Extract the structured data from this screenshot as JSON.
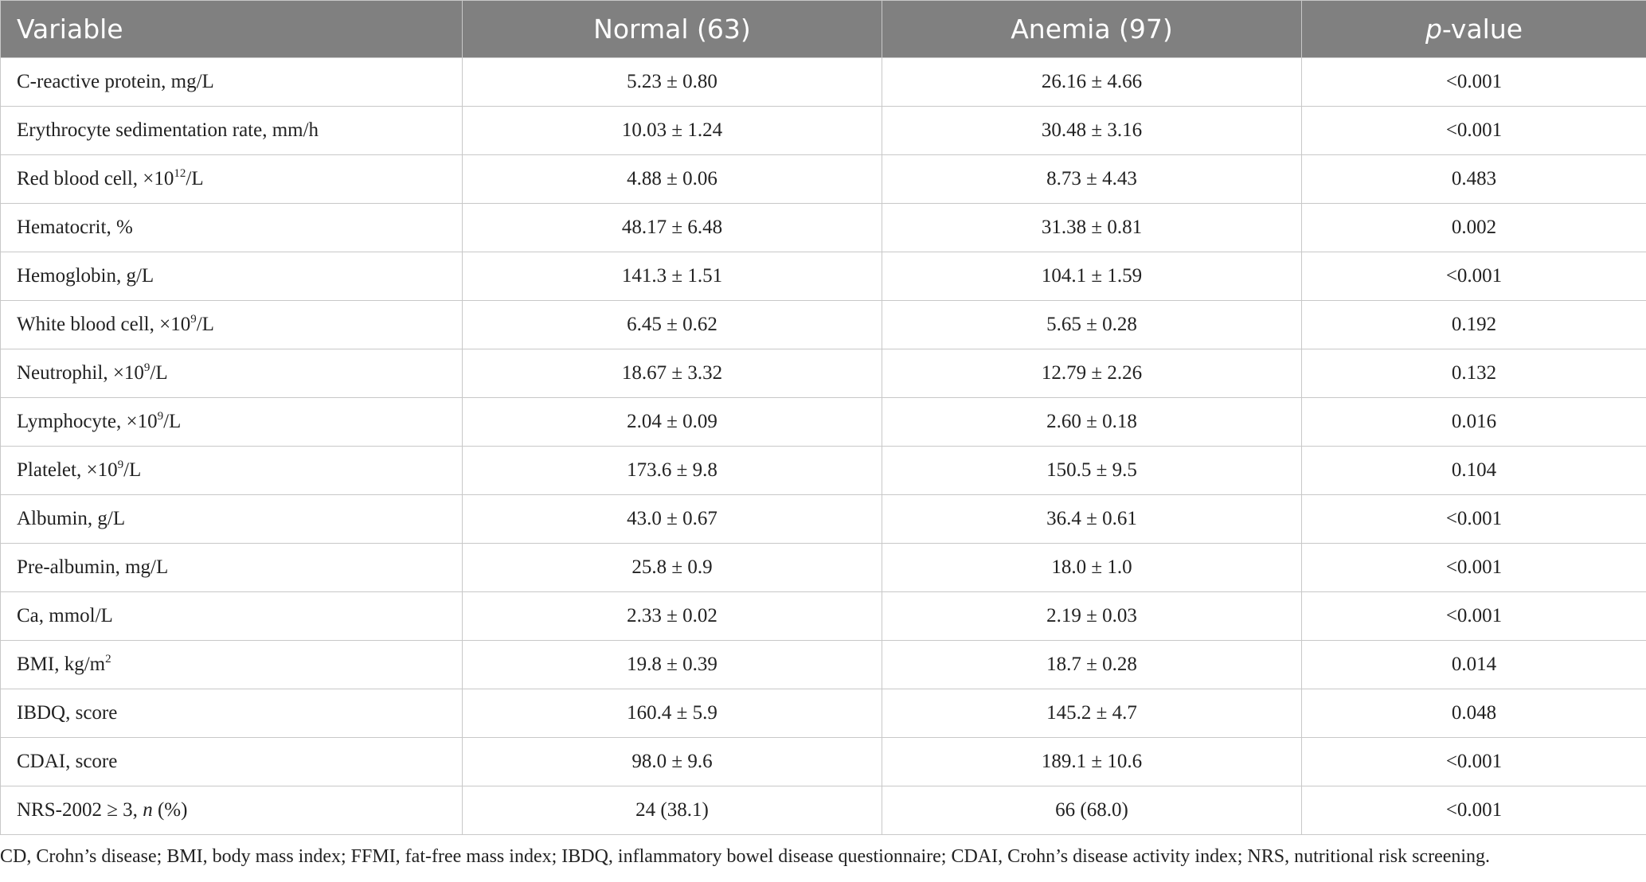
{
  "table": {
    "header": [
      [
        {
          "text": "Variable"
        }
      ],
      [
        {
          "text": "Normal (63)"
        }
      ],
      [
        {
          "text": "Anemia (97)"
        }
      ],
      [
        {
          "text": "p",
          "style": "italic"
        },
        {
          "text": "-value"
        }
      ]
    ],
    "rows": [
      [
        [
          {
            "text": "C-reactive protein, mg/L"
          }
        ],
        [
          {
            "text": "5.23 ± 0.80"
          }
        ],
        [
          {
            "text": "26.16 ± 4.66"
          }
        ],
        [
          {
            "text": "<0.001"
          }
        ]
      ],
      [
        [
          {
            "text": "Erythrocyte sedimentation rate, mm/h"
          }
        ],
        [
          {
            "text": "10.03 ± 1.24"
          }
        ],
        [
          {
            "text": "30.48 ± 3.16"
          }
        ],
        [
          {
            "text": "<0.001"
          }
        ]
      ],
      [
        [
          {
            "text": "Red blood cell, ×10"
          },
          {
            "text": "12",
            "style": "sup"
          },
          {
            "text": "/L"
          }
        ],
        [
          {
            "text": "4.88 ± 0.06"
          }
        ],
        [
          {
            "text": "8.73 ± 4.43"
          }
        ],
        [
          {
            "text": "0.483"
          }
        ]
      ],
      [
        [
          {
            "text": "Hematocrit, %"
          }
        ],
        [
          {
            "text": "48.17 ± 6.48"
          }
        ],
        [
          {
            "text": "31.38 ± 0.81"
          }
        ],
        [
          {
            "text": "0.002"
          }
        ]
      ],
      [
        [
          {
            "text": "Hemoglobin, g/L"
          }
        ],
        [
          {
            "text": "141.3 ± 1.51"
          }
        ],
        [
          {
            "text": "104.1 ± 1.59"
          }
        ],
        [
          {
            "text": "<0.001"
          }
        ]
      ],
      [
        [
          {
            "text": "White blood cell, ×10"
          },
          {
            "text": "9",
            "style": "sup"
          },
          {
            "text": "/L"
          }
        ],
        [
          {
            "text": "6.45 ± 0.62"
          }
        ],
        [
          {
            "text": "5.65 ± 0.28"
          }
        ],
        [
          {
            "text": "0.192"
          }
        ]
      ],
      [
        [
          {
            "text": "Neutrophil, ×10"
          },
          {
            "text": "9",
            "style": "sup"
          },
          {
            "text": "/L"
          }
        ],
        [
          {
            "text": "18.67 ± 3.32"
          }
        ],
        [
          {
            "text": "12.79 ± 2.26"
          }
        ],
        [
          {
            "text": "0.132"
          }
        ]
      ],
      [
        [
          {
            "text": "Lymphocyte, ×10"
          },
          {
            "text": "9",
            "style": "sup"
          },
          {
            "text": "/L"
          }
        ],
        [
          {
            "text": "2.04 ± 0.09"
          }
        ],
        [
          {
            "text": "2.60 ± 0.18"
          }
        ],
        [
          {
            "text": "0.016"
          }
        ]
      ],
      [
        [
          {
            "text": "Platelet, ×10"
          },
          {
            "text": "9",
            "style": "sup"
          },
          {
            "text": "/L"
          }
        ],
        [
          {
            "text": "173.6 ± 9.8"
          }
        ],
        [
          {
            "text": "150.5 ± 9.5"
          }
        ],
        [
          {
            "text": "0.104"
          }
        ]
      ],
      [
        [
          {
            "text": "Albumin, g/L"
          }
        ],
        [
          {
            "text": "43.0 ± 0.67"
          }
        ],
        [
          {
            "text": "36.4 ± 0.61"
          }
        ],
        [
          {
            "text": "<0.001"
          }
        ]
      ],
      [
        [
          {
            "text": "Pre-albumin, mg/L"
          }
        ],
        [
          {
            "text": "25.8 ± 0.9"
          }
        ],
        [
          {
            "text": "18.0 ± 1.0"
          }
        ],
        [
          {
            "text": "<0.001"
          }
        ]
      ],
      [
        [
          {
            "text": "Ca, mmol/L"
          }
        ],
        [
          {
            "text": "2.33 ± 0.02"
          }
        ],
        [
          {
            "text": "2.19 ± 0.03"
          }
        ],
        [
          {
            "text": "<0.001"
          }
        ]
      ],
      [
        [
          {
            "text": "BMI, kg/m"
          },
          {
            "text": "2",
            "style": "sup"
          }
        ],
        [
          {
            "text": "19.8 ± 0.39"
          }
        ],
        [
          {
            "text": "18.7 ± 0.28"
          }
        ],
        [
          {
            "text": "0.014"
          }
        ]
      ],
      [
        [
          {
            "text": "IBDQ, score"
          }
        ],
        [
          {
            "text": "160.4 ± 5.9"
          }
        ],
        [
          {
            "text": "145.2 ± 4.7"
          }
        ],
        [
          {
            "text": "0.048"
          }
        ]
      ],
      [
        [
          {
            "text": "CDAI, score"
          }
        ],
        [
          {
            "text": "98.0 ± 9.6"
          }
        ],
        [
          {
            "text": "189.1 ± 10.6"
          }
        ],
        [
          {
            "text": "<0.001"
          }
        ]
      ],
      [
        [
          {
            "text": "NRS-2002 ≥ 3, "
          },
          {
            "text": "n",
            "style": "italic"
          },
          {
            "text": " (%)"
          }
        ],
        [
          {
            "text": "24 (38.1)"
          }
        ],
        [
          {
            "text": "66 (68.0)"
          }
        ],
        [
          {
            "text": "<0.001"
          }
        ]
      ]
    ]
  },
  "footnote": "CD, Crohn’s disease; BMI, body mass index; FFMI, fat-free mass index; IBDQ, inflammatory bowel disease questionnaire; CDAI, Crohn’s disease activity index; NRS, nutritional risk screening."
}
